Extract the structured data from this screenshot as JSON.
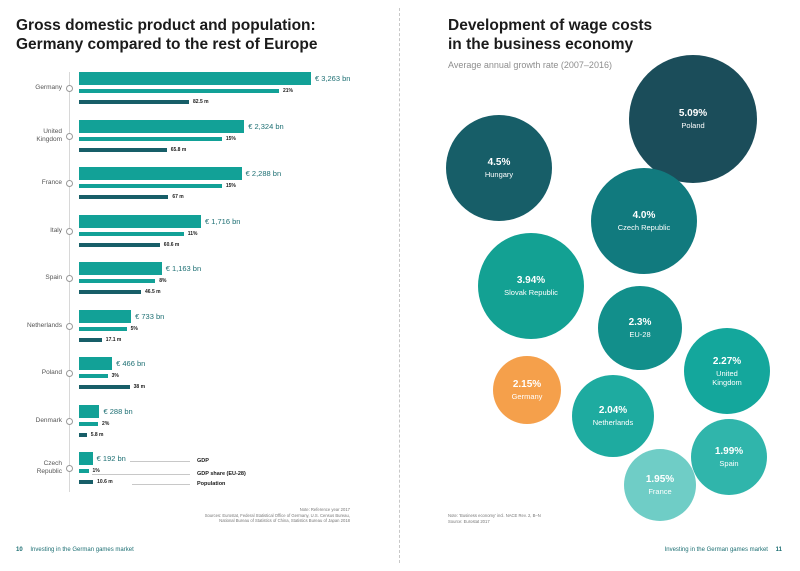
{
  "left_page": {
    "title_line1": "Gross domestic product and population:",
    "title_line2": "Germany compared to the rest of Europe",
    "page_number": "10",
    "footer_text": "Investing in the German games market",
    "notes": {
      "note": "Note: Reference year 2017",
      "sources_line1": "Sources: Eurostat, Federal Statistical Office of Germany, U.S. Census Bureau,",
      "sources_line2": "National Bureau of Statistics of China, Statistics Bureau of Japan 2018"
    },
    "legend": {
      "gdp": "GDP",
      "share": "GDP share (EU-28)",
      "population": "Population"
    }
  },
  "right_page": {
    "title_line1": "Development of wage costs",
    "title_line2": "in the business economy",
    "subtitle": "Average annual growth rate (2007–2016)",
    "page_number": "11",
    "footer_text": "Investing in the German games market",
    "notes_line1": "Note: 'Business economy' incl. NACE Rev. 2, B–N",
    "notes_line2": "Source: Eurostat 2017"
  },
  "chart_data": [
    {
      "type": "bar",
      "title": "Gross domestic product and population: Germany compared to the rest of Europe",
      "categories": [
        "Germany",
        "United Kingdom",
        "France",
        "Italy",
        "Spain",
        "Netherlands",
        "Poland",
        "Denmark",
        "Czech Republic"
      ],
      "category_lines": [
        [
          "Germany"
        ],
        [
          "United",
          "Kingdom"
        ],
        [
          "France"
        ],
        [
          "Italy"
        ],
        [
          "Spain"
        ],
        [
          "Netherlands"
        ],
        [
          "Poland"
        ],
        [
          "Denmark"
        ],
        [
          "Czech",
          "Republic"
        ]
      ],
      "series": [
        {
          "name": "GDP",
          "unit": "bn €",
          "values": [
            3263,
            2324,
            2288,
            1716,
            1163,
            733,
            466,
            288,
            192
          ],
          "labels": [
            "€ 3,263 bn",
            "€ 2,324 bn",
            "€ 2,288 bn",
            "€ 1,716 bn",
            "€ 1,163 bn",
            "€ 733 bn",
            "€ 466 bn",
            "€ 288 bn",
            "€ 192 bn"
          ]
        },
        {
          "name": "GDP share (EU-28)",
          "unit": "%",
          "values": [
            21,
            15,
            15,
            11,
            8,
            5,
            3,
            2,
            1
          ],
          "labels": [
            "21%",
            "15%",
            "15%",
            "11%",
            "8%",
            "5%",
            "3%",
            "2%",
            "1%"
          ]
        },
        {
          "name": "Population",
          "unit": "m",
          "values": [
            82.5,
            65.8,
            67,
            60.6,
            46.5,
            17.1,
            38,
            5.8,
            10.6
          ],
          "labels": [
            "82.5 m",
            "65.8 m",
            "67 m",
            "60.6 m",
            "46.5 m",
            "17.1 m",
            "38 m",
            "5.8 m",
            "10.6 m"
          ]
        }
      ]
    },
    {
      "type": "bubble",
      "title": "Development of wage costs in the business economy",
      "subtitle": "Average annual growth rate (2007–2016)",
      "unit": "%",
      "points": [
        {
          "label": "Poland",
          "value": 5.09,
          "display": "5.09%",
          "color": "#1b4d5a"
        },
        {
          "label": "Hungary",
          "value": 4.5,
          "display": "4.5%",
          "color": "#175e68"
        },
        {
          "label": "Czech Republic",
          "value": 4.0,
          "display": "4.0%",
          "color": "#117a7e"
        },
        {
          "label": "Slovak Republic",
          "value": 3.94,
          "display": "3.94%",
          "color": "#13a193"
        },
        {
          "label": "EU-28",
          "value": 2.3,
          "display": "2.3%",
          "color": "#128f8b"
        },
        {
          "label": "United Kingdom",
          "value": 2.27,
          "display": "2.27%",
          "color": "#14a79c"
        },
        {
          "label": "Germany",
          "value": 2.15,
          "display": "2.15%",
          "color": "#f5a04b"
        },
        {
          "label": "Netherlands",
          "value": 2.04,
          "display": "2.04%",
          "color": "#1eaba0"
        },
        {
          "label": "Spain",
          "value": 1.99,
          "display": "1.99%",
          "color": "#30b5ab"
        },
        {
          "label": "France",
          "value": 1.95,
          "display": "1.95%",
          "color": "#6fcdc6"
        }
      ]
    }
  ]
}
